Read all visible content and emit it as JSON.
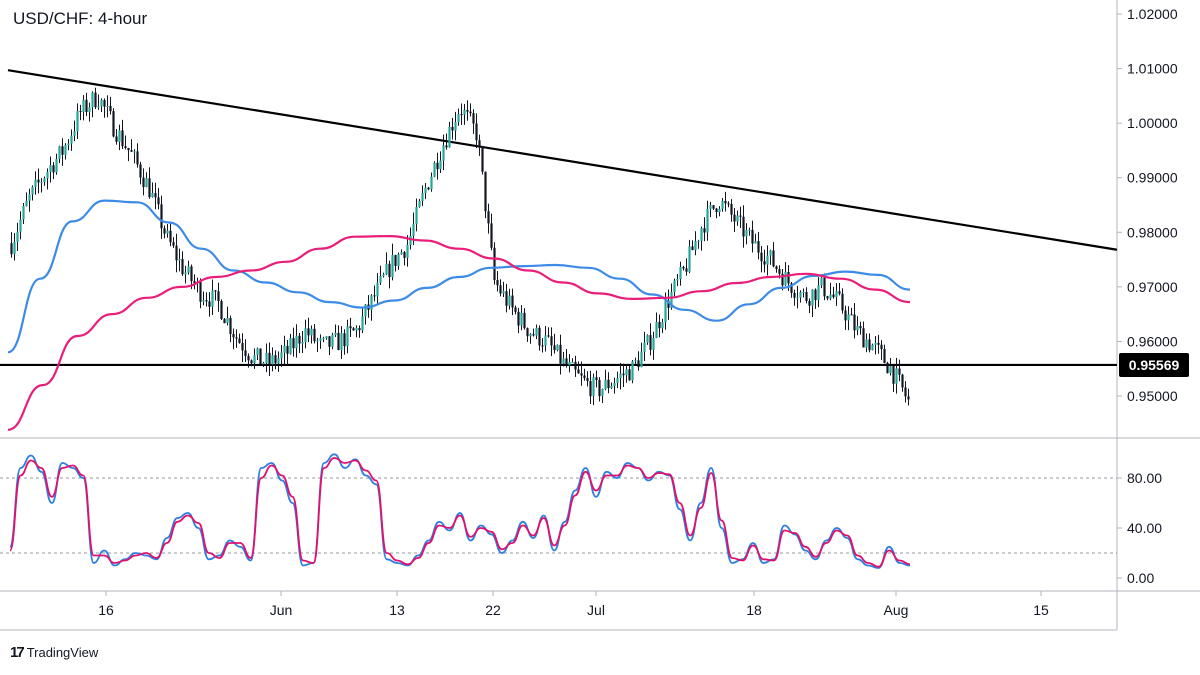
{
  "header": {
    "title": "USD/CHF: 4-hour"
  },
  "branding": {
    "logo_mark": "17",
    "name": "TradingView"
  },
  "colors": {
    "up_candle": "#26a69a",
    "down_candle": "#131722",
    "sma_blue": "#3c8be6",
    "sma_red": "#e91e7a",
    "stoch_k": "#2e7fe0",
    "stoch_d": "#e0106f",
    "trendline": "#000000"
  },
  "chart_data": [
    {
      "type": "candlestick",
      "title": "USD/CHF: 4-hour",
      "ylim": [
        0.9425,
        1.0225
      ],
      "ytick_labels": [
        "1.02000",
        "1.01000",
        "1.00000",
        "0.99000",
        "0.98000",
        "0.97000",
        "0.96000",
        "0.95000"
      ],
      "yticks": [
        1.02,
        1.01,
        1.0,
        0.99,
        0.98,
        0.97,
        0.96,
        0.95
      ],
      "x_labels": [
        "16",
        "Jun",
        "13",
        "22",
        "Jul",
        "18",
        "Aug",
        "15"
      ],
      "current_price_label": "0.95569",
      "horizontal_support": 0.95569,
      "descending_trendline": {
        "from": 1.0097,
        "to": 0.9768
      },
      "close_path": [
        0.978,
        0.986,
        0.991,
        0.995,
        1.002,
        1.005,
        0.999,
        0.994,
        0.988,
        0.979,
        0.973,
        0.969,
        0.967,
        0.961,
        0.957,
        0.956,
        0.958,
        0.962,
        0.959,
        0.96,
        0.962,
        0.968,
        0.974,
        0.978,
        0.988,
        0.996,
        1.003,
        0.998,
        0.971,
        0.966,
        0.962,
        0.96,
        0.956,
        0.953,
        0.951,
        0.953,
        0.955,
        0.96,
        0.967,
        0.973,
        0.981,
        0.986,
        0.982,
        0.978,
        0.975,
        0.971,
        0.968,
        0.97,
        0.967,
        0.962,
        0.959,
        0.955,
        0.949
      ],
      "series": [
        {
          "name": "",
          "values": [
            0.958,
            0.9715,
            0.982,
            0.9858,
            0.9855,
            0.9818,
            0.977,
            0.973,
            0.9708,
            0.969,
            0.9672,
            0.9662,
            0.9675,
            0.9698,
            0.9718,
            0.9735,
            0.9738,
            0.974,
            0.9735,
            0.9715,
            0.9686,
            0.9658,
            0.9638,
            0.9668,
            0.9698,
            0.972,
            0.9728,
            0.9722,
            0.9695
          ]
        },
        {
          "name": "",
          "values": [
            0.9438,
            0.952,
            0.961,
            0.965,
            0.968,
            0.97,
            0.9718,
            0.973,
            0.9746,
            0.977,
            0.9792,
            0.9793,
            0.9785,
            0.977,
            0.9752,
            0.973,
            0.9708,
            0.9688,
            0.9678,
            0.968,
            0.9692,
            0.9707,
            0.9718,
            0.9724,
            0.9715,
            0.9695,
            0.9672
          ]
        }
      ]
    },
    {
      "type": "line",
      "ylim": [
        -8,
        108
      ],
      "ytick_labels": [
        "80.00",
        "40.00",
        "0.00"
      ],
      "yticks": [
        80,
        40,
        0
      ],
      "reference_lines": [
        80,
        20
      ],
      "series": [
        {
          "name": "",
          "values": [
            25,
            88,
            98,
            85,
            60,
            92,
            88,
            80,
            12,
            22,
            10,
            15,
            20,
            18,
            15,
            32,
            48,
            52,
            40,
            15,
            18,
            30,
            25,
            14,
            88,
            92,
            78,
            60,
            10,
            12,
            92,
            99,
            88,
            95,
            82,
            75,
            15,
            12,
            10,
            18,
            30,
            45,
            38,
            52,
            30,
            42,
            35,
            20,
            30,
            45,
            32,
            50,
            22,
            45,
            70,
            88,
            65,
            85,
            80,
            92,
            88,
            78,
            85,
            82,
            55,
            30,
            60,
            88,
            40,
            12,
            15,
            28,
            12,
            15,
            42,
            35,
            22,
            15,
            30,
            40,
            32,
            15,
            10,
            8,
            25,
            12,
            10
          ]
        },
        {
          "name": "",
          "values": [
            22,
            82,
            94,
            88,
            65,
            88,
            90,
            82,
            18,
            18,
            12,
            14,
            18,
            20,
            16,
            28,
            45,
            50,
            44,
            20,
            16,
            28,
            28,
            16,
            80,
            90,
            82,
            65,
            14,
            12,
            88,
            96,
            92,
            94,
            86,
            78,
            20,
            14,
            11,
            16,
            28,
            42,
            40,
            50,
            33,
            40,
            37,
            23,
            28,
            42,
            34,
            48,
            26,
            42,
            66,
            85,
            70,
            82,
            82,
            90,
            88,
            80,
            84,
            83,
            60,
            34,
            56,
            84,
            46,
            16,
            14,
            26,
            15,
            14,
            38,
            36,
            25,
            17,
            28,
            38,
            34,
            18,
            12,
            9,
            22,
            14,
            11
          ]
        }
      ]
    }
  ]
}
